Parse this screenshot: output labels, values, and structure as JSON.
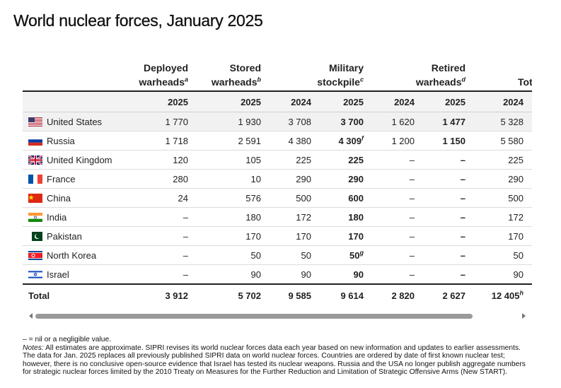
{
  "title": "World nuclear forces, January 2025",
  "header": {
    "columns": [
      {
        "lines": [
          "Deployed",
          "warheads"
        ],
        "sup": "a"
      },
      {
        "lines": [
          "Stored",
          "warheads"
        ],
        "sup": "b"
      },
      {
        "lines": [
          "Military",
          "stockpile"
        ],
        "sup": "c"
      },
      {
        "lines": [
          "Retired",
          "warheads"
        ],
        "sup": "d"
      },
      {
        "lines": [
          "Total inventory"
        ]
      }
    ],
    "years": [
      "2025",
      "2025",
      "2024",
      "2025",
      "2024",
      "2025",
      "2024"
    ]
  },
  "rows": [
    {
      "country": "United States",
      "values": [
        "1 770",
        "1 930",
        "3 708",
        "3 700",
        "1 620",
        "1 477",
        "5 328"
      ]
    },
    {
      "country": "Russia",
      "values": [
        "1 718",
        "2 591",
        "4 380",
        {
          "text": "4 309",
          "sup": "f"
        },
        "1 200",
        "1 150",
        "5 580"
      ]
    },
    {
      "country": "United Kingdom",
      "values": [
        "120",
        "105",
        "225",
        "225",
        "–",
        "–",
        "225"
      ]
    },
    {
      "country": "France",
      "values": [
        "280",
        "10",
        "290",
        "290",
        "–",
        "–",
        "290"
      ]
    },
    {
      "country": "China",
      "values": [
        "24",
        "576",
        "500",
        "600",
        "–",
        "–",
        "500"
      ]
    },
    {
      "country": "India",
      "values": [
        "–",
        "180",
        "172",
        "180",
        "–",
        "–",
        "172"
      ]
    },
    {
      "country": "Pakistan",
      "values": [
        "–",
        "170",
        "170",
        "170",
        "–",
        "–",
        "170"
      ]
    },
    {
      "country": "North Korea",
      "values": [
        "–",
        "50",
        "50",
        {
          "text": "50",
          "sup": "g"
        },
        "–",
        "–",
        "50"
      ]
    },
    {
      "country": "Israel",
      "values": [
        "–",
        "90",
        "90",
        "90",
        "–",
        "–",
        "90"
      ]
    }
  ],
  "total": {
    "label": "Total",
    "values": [
      "3 912",
      "5 702",
      "9 585",
      "9 614",
      "2 820",
      "2 627",
      {
        "text": "12 405",
        "sup": "h"
      }
    ]
  },
  "footnotes": {
    "nil_note": "– = nil or a negligible value.",
    "notes_label": "Notes:",
    "notes_text": "All estimates are approximate. SIPRI revises its world nuclear forces data each year based on new information and updates to earlier assessments. The data for Jan. 2025 replaces all previously published SIPRI data on world nuclear forces. Countries are ordered by date of first known nuclear test; however, there is no conclusive open-source evidence that Israel has tested its nuclear weapons. Russia and the USA no longer publish aggregate numbers for strategic nuclear forces limited by the 2010 Treaty on Measures for the Further Reduction and Limitation of Strategic Offensive Arms (New START)."
  }
}
